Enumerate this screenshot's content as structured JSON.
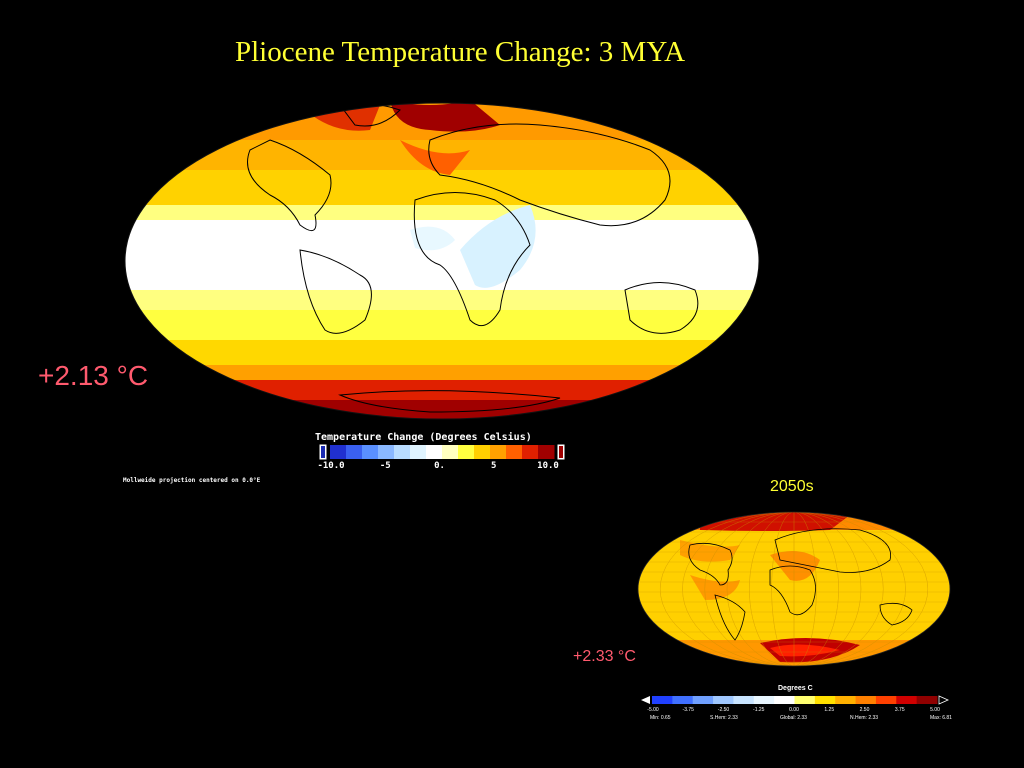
{
  "title": "Pliocene Temperature Change: 3 MYA",
  "pliocene": {
    "anomaly": "+2.13 °C",
    "projection_note": "Mollweide projection centered on 0.0°E",
    "colorbar": {
      "title": "Temperature Change (Degrees Celsius)",
      "ticks": [
        "-10.0",
        "-5",
        "0.",
        "5",
        "10.0"
      ],
      "colors": [
        "#2030d0",
        "#3a60f0",
        "#5a90ff",
        "#8ab8ff",
        "#b8dcff",
        "#e0f4ff",
        "#ffffff",
        "#ffffc0",
        "#ffff40",
        "#ffd000",
        "#ffa000",
        "#ff6000",
        "#e02000",
        "#a00000"
      ]
    }
  },
  "projection_2050s": {
    "label": "2050s",
    "anomaly": "+2.33 °C",
    "colorbar": {
      "title": "Degrees C",
      "ticks": [
        "-5.00",
        "-3.75",
        "-2.50",
        "-1.25",
        "0.00",
        "1.25",
        "2.50",
        "3.75",
        "5.00"
      ],
      "colors": [
        "#2040ff",
        "#4070ff",
        "#70a0ff",
        "#a0c8ff",
        "#c8e4ff",
        "#e8f6ff",
        "#ffffff",
        "#ffff70",
        "#ffe000",
        "#ffb000",
        "#ff8000",
        "#ff4000",
        "#d00000",
        "#900000"
      ],
      "stats": [
        "Min: 0.65",
        "S.Hem: 2.33",
        "Global: 2.33",
        "N.Hem: 2.33",
        "Max: 6.81"
      ]
    }
  }
}
